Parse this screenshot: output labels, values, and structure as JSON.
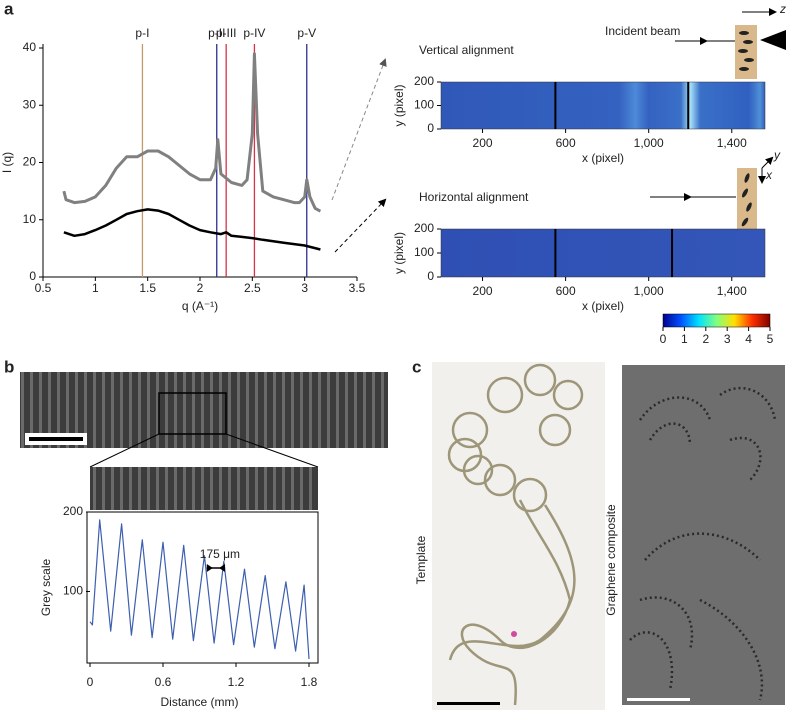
{
  "panel_labels": [
    "a",
    "b",
    "c"
  ],
  "chart_data": [
    {
      "type": "line",
      "xlabel": "q (A⁻¹)",
      "ylabel": "I (q)",
      "xlim": [
        0.5,
        3.5
      ],
      "ylim": [
        0,
        40
      ],
      "xticks": [
        0.5,
        1,
        1.5,
        2,
        2.5,
        3,
        3.5
      ],
      "yticks": [
        0,
        10,
        20,
        30,
        40
      ],
      "series": [
        {
          "color": "#808080",
          "x": [
            0.7,
            0.72,
            0.8,
            0.9,
            1.0,
            1.1,
            1.2,
            1.3,
            1.4,
            1.5,
            1.6,
            1.7,
            1.8,
            1.9,
            2.0,
            2.1,
            2.15,
            2.17,
            2.2,
            2.3,
            2.4,
            2.45,
            2.5,
            2.52,
            2.55,
            2.6,
            2.7,
            2.8,
            2.9,
            2.95,
            3.0,
            3.02,
            3.05,
            3.1,
            3.15
          ],
          "values": [
            15,
            13.5,
            13,
            13.2,
            14,
            16,
            19,
            21,
            21,
            22,
            22,
            21,
            19.5,
            18,
            17,
            17,
            19,
            24,
            18,
            16.5,
            16,
            17,
            25,
            39,
            25,
            15,
            14,
            13.5,
            13,
            13,
            14,
            17,
            14,
            12,
            11.5
          ]
        },
        {
          "color": "#000000",
          "x": [
            0.7,
            0.8,
            0.9,
            1.0,
            1.1,
            1.2,
            1.3,
            1.4,
            1.5,
            1.6,
            1.7,
            1.8,
            1.9,
            2.0,
            2.1,
            2.2,
            2.25,
            2.3,
            2.4,
            2.5,
            2.6,
            2.8,
            3.0,
            3.15
          ],
          "values": [
            7.8,
            7.2,
            7.5,
            8.2,
            9,
            10,
            11,
            11.5,
            11.8,
            11.6,
            11,
            10,
            9,
            8.2,
            7.8,
            7.5,
            7.8,
            7.2,
            7,
            6.8,
            6.5,
            6,
            5.5,
            4.8
          ]
        }
      ],
      "vlines": [
        {
          "label": "p-I",
          "x": 1.45,
          "color": "#c49a6c"
        },
        {
          "label": "p-II",
          "x": 2.16,
          "color": "#2b2f8f"
        },
        {
          "label": "p-III",
          "x": 2.25,
          "color": "#d6304a"
        },
        {
          "label": "p-IV",
          "x": 2.52,
          "color": "#d6304a"
        },
        {
          "label": "p-V",
          "x": 3.02,
          "color": "#2b2f8f"
        }
      ]
    },
    {
      "type": "image",
      "title": "Vertical alignment",
      "xlabel": "x (pixel)",
      "ylabel": "y (pixel)",
      "xlim": [
        0,
        1560
      ],
      "ylim": [
        0,
        200
      ],
      "xticks": [
        200,
        600,
        {
          "value": 1000,
          "label": "1,000"
        },
        {
          "value": 1400,
          "label": "1,400"
        }
      ],
      "yticks": [
        0,
        100,
        200
      ]
    },
    {
      "type": "image",
      "title": "Horizontal alignment",
      "xlabel": "x (pixel)",
      "ylabel": "y (pixel)",
      "xlim": [
        0,
        1560
      ],
      "ylim": [
        0,
        200
      ],
      "xticks": [
        200,
        600,
        {
          "value": 1000,
          "label": "1,000"
        },
        {
          "value": 1400,
          "label": "1,400"
        }
      ],
      "yticks": [
        0,
        100,
        200
      ]
    },
    {
      "type": "colorbar",
      "xlim": [
        0,
        5
      ],
      "xticks": [
        0,
        1,
        2,
        3,
        4,
        5
      ],
      "colors": [
        "#00008f",
        "#0050ff",
        "#00e0ff",
        "#80ff80",
        "#ffe000",
        "#ff3000",
        "#800000"
      ]
    },
    {
      "type": "line",
      "xlabel": "Distance (mm)",
      "ylabel": "Grey scale",
      "xlim": [
        0,
        1.8
      ],
      "ylim": [
        10,
        200
      ],
      "xticks": [
        0,
        0.6,
        1.2,
        1.8
      ],
      "yticks": [
        100,
        200
      ],
      "series": [
        {
          "color": "#3d5fb0",
          "x": [
            0,
            0.02,
            0.08,
            0.17,
            0.26,
            0.34,
            0.43,
            0.51,
            0.6,
            0.68,
            0.77,
            0.85,
            0.94,
            1.02,
            1.1,
            1.18,
            1.27,
            1.35,
            1.44,
            1.52,
            1.61,
            1.69,
            1.76,
            1.8
          ],
          "values": [
            62,
            58,
            190,
            50,
            185,
            45,
            165,
            42,
            162,
            40,
            158,
            38,
            145,
            35,
            138,
            33,
            128,
            30,
            120,
            28,
            112,
            25,
            108,
            15
          ]
        }
      ],
      "annotation": "175 μm"
    }
  ],
  "diagram": {
    "incident_beam": "Incident beam",
    "z": "z",
    "y": "y",
    "x": "x"
  },
  "photos": {
    "template": "Template",
    "composite": "Graphene composite"
  }
}
